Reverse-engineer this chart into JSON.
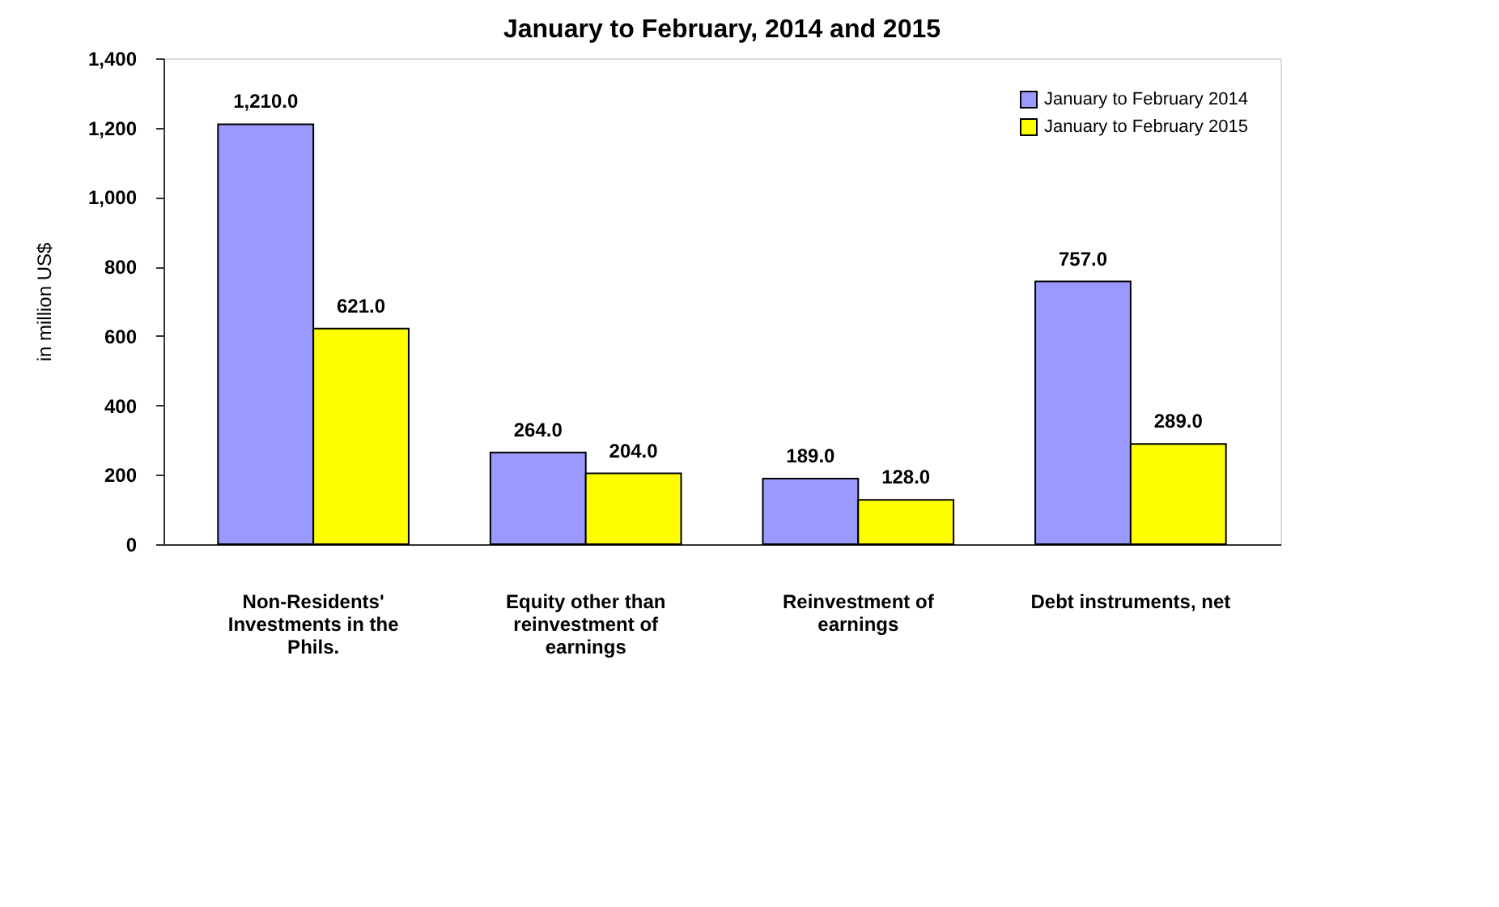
{
  "chart_data": {
    "type": "bar",
    "title": "January to February, 2014 and 2015",
    "ylabel": "in million US$",
    "categories": [
      "Non-Residents' Investments in the Phils.",
      "Equity other than reinvestment of earnings",
      "Reinvestment of earnings",
      "Debt instruments, net"
    ],
    "series": [
      {
        "name": "January to February 2014",
        "color": "#9999ff",
        "values": [
          1210,
          264,
          189,
          757
        ],
        "value_labels": [
          "1,210.0",
          "264.0",
          "189.0",
          "757.0"
        ]
      },
      {
        "name": "January to February 2015",
        "color": "#ffff00",
        "values": [
          621,
          204,
          128,
          289
        ],
        "value_labels": [
          "621.0",
          "204.0",
          "128.0",
          "289.0"
        ]
      }
    ],
    "ylim": [
      0,
      1400
    ],
    "yticks": [
      {
        "value": 0,
        "label": "0"
      },
      {
        "value": 200,
        "label": "200"
      },
      {
        "value": 400,
        "label": "400"
      },
      {
        "value": 600,
        "label": "600"
      },
      {
        "value": 800,
        "label": "800"
      },
      {
        "value": 1000,
        "label": "1,000"
      },
      {
        "value": 1200,
        "label": "1,200"
      },
      {
        "value": 1400,
        "label": "1,400"
      }
    ],
    "grid": false,
    "legend": "top right"
  }
}
